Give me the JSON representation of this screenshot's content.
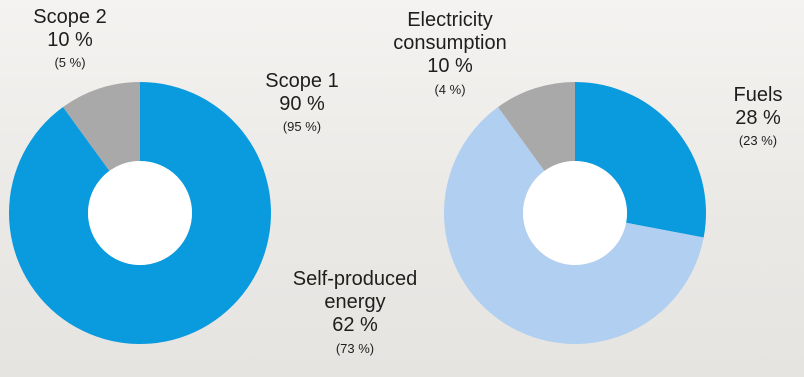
{
  "chart_data": [
    {
      "type": "pie",
      "hole": "donut",
      "slices": [
        {
          "label": "Scope 1",
          "value": 90,
          "value_text": "90 %",
          "previous_text": "(95 %)",
          "color": "#0a9ade"
        },
        {
          "label": "Scope 2",
          "value": 10,
          "value_text": "10 %",
          "previous_text": "(5 %)",
          "color": "#a9a9a9"
        }
      ]
    },
    {
      "type": "pie",
      "hole": "donut",
      "slices": [
        {
          "label": "Fuels",
          "value": 28,
          "value_text": "28 %",
          "previous_text": "(23 %)",
          "color": "#0a9ade"
        },
        {
          "label": "Self-produced energy",
          "label_lines": [
            "Self-produced",
            "energy"
          ],
          "value": 62,
          "value_text": "62 %",
          "previous_text": "(73 %)",
          "color": "#b1cff0"
        },
        {
          "label": "Electricity consumption",
          "label_lines": [
            "Electricity",
            "consumption"
          ],
          "value": 10,
          "value_text": "10 %",
          "previous_text": "(4 %)",
          "color": "#a9a9a9"
        }
      ]
    }
  ]
}
